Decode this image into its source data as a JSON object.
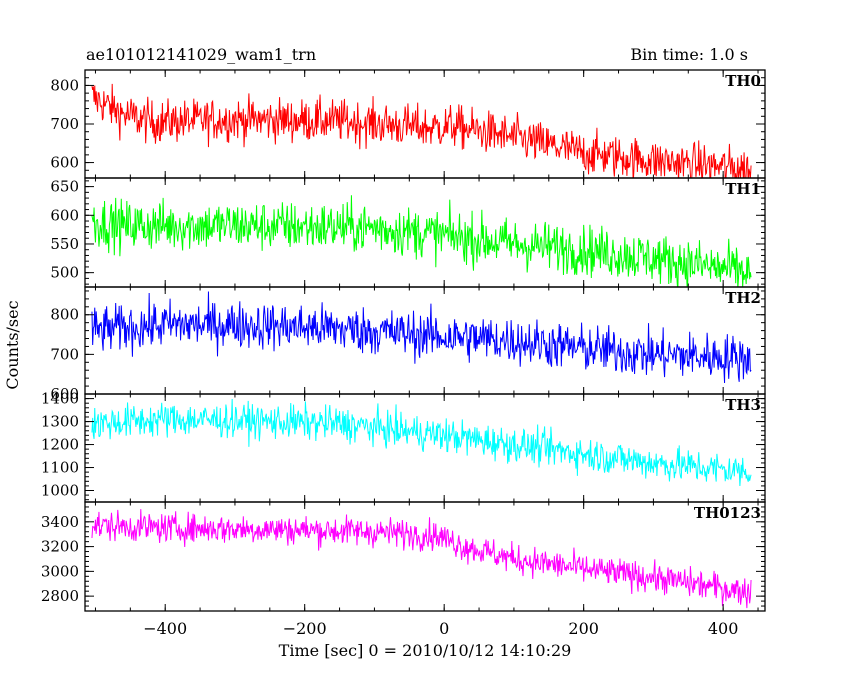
{
  "header": {
    "title": "ae101012141029_wam1_trn",
    "bin_time": "Bin time: 1.0 s"
  },
  "chart_data": {
    "type": "line",
    "title": "ae101012141029_wam1_trn",
    "subtitle": "Bin time: 1.0 s",
    "xlabel": "Time [sec] 0 = 2010/10/12 14:10:29",
    "ylabel": "Counts/sec",
    "xlim": [
      -515,
      460
    ],
    "xticks": [
      -400,
      -200,
      0,
      200,
      400
    ],
    "xtick_labels": [
      "−400",
      "−200",
      "0",
      "200",
      "400"
    ],
    "x_range": [
      -505,
      440
    ],
    "bin_time_s": 1.0,
    "grid": false,
    "legend": "none",
    "panels": [
      {
        "name": "TH0",
        "color": "#ff0000",
        "ylim": [
          560,
          840
        ],
        "yticks": [
          600,
          700,
          800
        ],
        "ytick_labels": [
          "600",
          "700",
          "800"
        ],
        "trend": [
          [
            -505,
            770
          ],
          [
            -460,
            725
          ],
          [
            -420,
            705
          ],
          [
            -300,
            712
          ],
          [
            -150,
            708
          ],
          [
            -20,
            690
          ],
          [
            10,
            695
          ],
          [
            100,
            665
          ],
          [
            200,
            625
          ],
          [
            300,
            605
          ],
          [
            440,
            582
          ]
        ],
        "noise": 28
      },
      {
        "name": "TH1",
        "color": "#00ff00",
        "ylim": [
          475,
          665
        ],
        "yticks": [
          500,
          550,
          600,
          650
        ],
        "ytick_labels": [
          "500",
          "550",
          "600",
          "650"
        ],
        "trend": [
          [
            -505,
            590
          ],
          [
            -460,
            582
          ],
          [
            -300,
            582
          ],
          [
            -100,
            578
          ],
          [
            0,
            565
          ],
          [
            100,
            550
          ],
          [
            200,
            540
          ],
          [
            300,
            525
          ],
          [
            440,
            500
          ]
        ],
        "noise": 22
      },
      {
        "name": "TH2",
        "color": "#0000ff",
        "ylim": [
          600,
          870
        ],
        "yticks": [
          600,
          700,
          800
        ],
        "ytick_labels": [
          "600",
          "700",
          "800"
        ],
        "trend": [
          [
            -505,
            760
          ],
          [
            -400,
            775
          ],
          [
            -300,
            775
          ],
          [
            -150,
            765
          ],
          [
            0,
            745
          ],
          [
            100,
            735
          ],
          [
            200,
            715
          ],
          [
            300,
            700
          ],
          [
            440,
            690
          ]
        ],
        "noise": 30
      },
      {
        "name": "TH3",
        "color": "#00ffff",
        "ylim": [
          950,
          1420
        ],
        "yticks": [
          1000,
          1100,
          1200,
          1300,
          1400
        ],
        "ytick_labels": [
          "1000",
          "1100",
          "1200",
          "1300",
          "1400"
        ],
        "trend": [
          [
            -505,
            1290
          ],
          [
            -400,
            1310
          ],
          [
            -300,
            1305
          ],
          [
            -150,
            1290
          ],
          [
            0,
            1240
          ],
          [
            100,
            1200
          ],
          [
            200,
            1160
          ],
          [
            300,
            1120
          ],
          [
            440,
            1080
          ]
        ],
        "noise": 38
      },
      {
        "name": "TH0123",
        "color": "#ff00ff",
        "ylim": [
          2680,
          3560
        ],
        "yticks": [
          2800,
          3000,
          3200,
          3400
        ],
        "ytick_labels": [
          "2800",
          "3000",
          "3200",
          "3400"
        ],
        "trend": [
          [
            -505,
            3370
          ],
          [
            -400,
            3350
          ],
          [
            -250,
            3340
          ],
          [
            -100,
            3320
          ],
          [
            -10,
            3290
          ],
          [
            30,
            3200
          ],
          [
            100,
            3100
          ],
          [
            200,
            3020
          ],
          [
            300,
            2950
          ],
          [
            440,
            2830
          ]
        ],
        "noise": 60
      }
    ]
  }
}
